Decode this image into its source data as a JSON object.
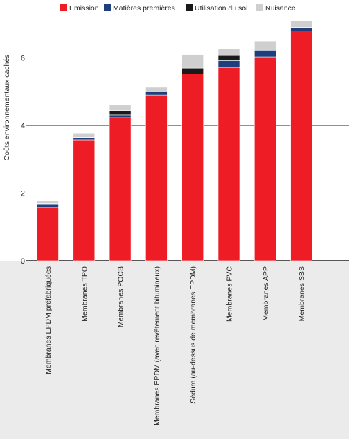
{
  "chart_data": {
    "type": "bar",
    "stacked": true,
    "ylabel": "Coûts environnementaux cachés",
    "ylim": [
      0,
      7.2
    ],
    "yticks": [
      0,
      2,
      4,
      6
    ],
    "grid": true,
    "legend_position": "top",
    "categories": [
      "Membranes EPDM préfabriquées",
      "Membranes TPO",
      "Membranes POCB",
      "Membranes EPDM (avec revêtement bitumineux)",
      "Sédum (au-dessus de membranes EPDM)",
      "Membranes PVC",
      "Membranes APP",
      "Membranes SBS"
    ],
    "series": [
      {
        "name": "Emission",
        "color": "#ee1c25",
        "values": [
          1.58,
          3.57,
          4.25,
          4.9,
          5.53,
          5.72,
          6.03,
          6.8
        ]
      },
      {
        "name": "Matières premières",
        "color": "#1f3e7c",
        "values": [
          0.1,
          0.07,
          0.06,
          0.1,
          0.0,
          0.2,
          0.2,
          0.1
        ]
      },
      {
        "name": "Utilisation du sol",
        "color": "#1a1a1a",
        "values": [
          0.01,
          0.01,
          0.13,
          0.0,
          0.17,
          0.15,
          0.0,
          0.0
        ]
      },
      {
        "name": "Nuisance",
        "color": "#cfcfcf",
        "values": [
          0.08,
          0.12,
          0.16,
          0.13,
          0.4,
          0.2,
          0.27,
          0.2
        ]
      }
    ]
  },
  "colors": {
    "background_bottom": "#ebebeb",
    "grid": "#231f20"
  }
}
